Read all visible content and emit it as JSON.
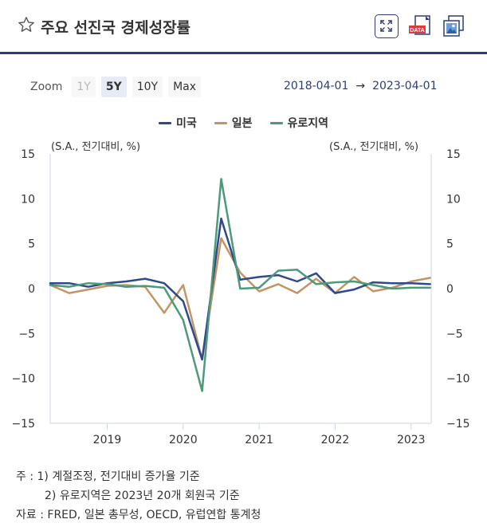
{
  "header": {
    "title": "주요 선진국 경제성장률",
    "icons": [
      "star-icon",
      "fullscreen-icon",
      "data-download-icon",
      "image-download-icon"
    ],
    "data_badge": "DATA"
  },
  "zoom": {
    "label": "Zoom",
    "buttons": [
      "1Y",
      "5Y",
      "10Y",
      "Max"
    ],
    "selected": "5Y",
    "disabled": [
      "1Y"
    ]
  },
  "range": {
    "from": "2018-04-01",
    "arrow": "→",
    "to": "2023-04-01"
  },
  "chart_data": {
    "type": "line",
    "x": [
      "2018Q2",
      "2018Q3",
      "2018Q4",
      "2019Q1",
      "2019Q2",
      "2019Q3",
      "2019Q4",
      "2020Q1",
      "2020Q2",
      "2020Q3",
      "2020Q4",
      "2021Q1",
      "2021Q2",
      "2021Q3",
      "2021Q4",
      "2022Q1",
      "2022Q2",
      "2022Q3",
      "2022Q4",
      "2023Q1",
      "2023Q2"
    ],
    "series": [
      {
        "name": "미국",
        "color": "#2e4a8e",
        "values": [
          0.6,
          0.6,
          0.2,
          0.6,
          0.8,
          1.1,
          0.6,
          -1.4,
          -7.9,
          7.8,
          1.0,
          1.3,
          1.5,
          0.8,
          1.7,
          -0.5,
          -0.1,
          0.7,
          0.6,
          0.6,
          0.5
        ]
      },
      {
        "name": "일본",
        "color": "#c49462",
        "values": [
          0.4,
          -0.5,
          -0.1,
          0.3,
          0.4,
          0.2,
          -2.7,
          0.4,
          -7.9,
          5.6,
          1.8,
          -0.3,
          0.5,
          -0.5,
          1.1,
          -0.5,
          1.3,
          -0.3,
          0.1,
          0.8,
          1.2
        ]
      },
      {
        "name": "유로지역",
        "color": "#4b9a7a",
        "values": [
          0.4,
          0.2,
          0.6,
          0.5,
          0.2,
          0.3,
          0.1,
          -3.5,
          -11.4,
          12.2,
          0.0,
          0.1,
          2.0,
          2.1,
          0.5,
          0.7,
          0.8,
          0.4,
          0.0,
          0.1,
          0.1
        ]
      }
    ],
    "y_label_left": "(S.A., 전기대비, %)",
    "y_label_right": "(S.A., 전기대비, %)",
    "ylim": [
      -15,
      15
    ],
    "y_ticks": [
      15,
      10,
      5,
      0,
      -5,
      -10,
      -15
    ],
    "y_tick_labels": [
      "15",
      "10",
      "5",
      "0",
      "−5",
      "−10",
      "−15"
    ],
    "x_ticks": [
      "2019",
      "2020",
      "2021",
      "2022",
      "2023"
    ],
    "legend_position": "top-center",
    "grid": false
  },
  "notes": {
    "prefix": "주 :",
    "items": [
      "1) 계절조정, 전기대비 증가율 기준",
      "2) 유로지역은 2023년 20개 회원국 기준"
    ],
    "source_prefix": "자료 :",
    "source": "FRED, 일본 총무성, OECD, 유럽연합 통계청"
  }
}
